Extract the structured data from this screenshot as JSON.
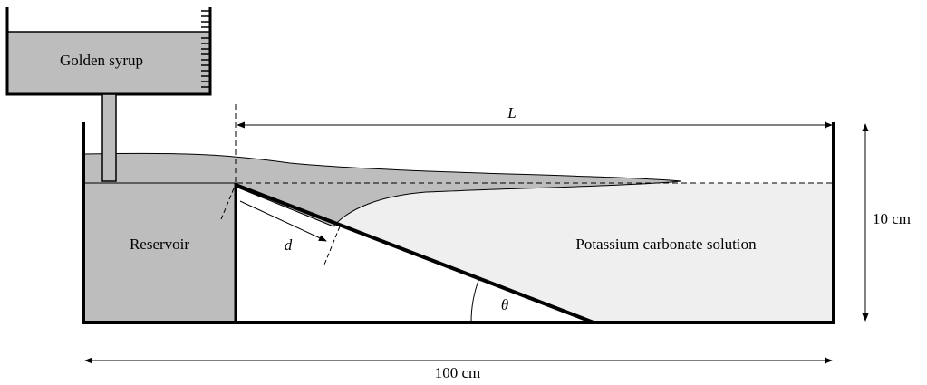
{
  "labels": {
    "syrup": "Golden syrup",
    "length": "L",
    "reservoir": "Reservoir",
    "distance": "d",
    "angle": "θ",
    "solution": "Potassium carbonate solution",
    "height": "10 cm",
    "width": "100 cm"
  }
}
